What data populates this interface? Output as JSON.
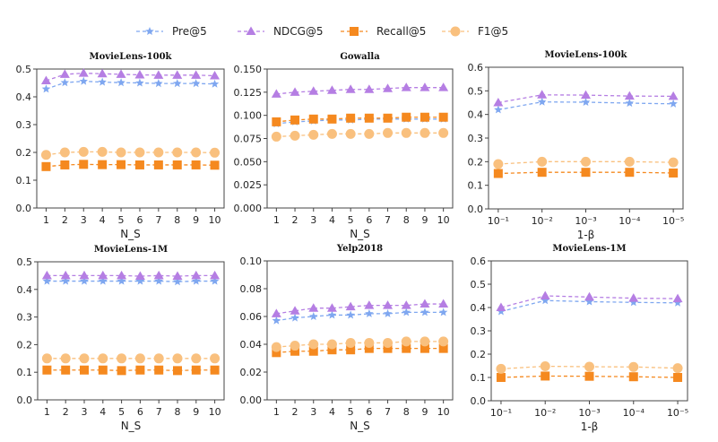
{
  "legend": {
    "placement": "top",
    "entries": [
      "Pre@5",
      "NDCG@5",
      "Recall@5",
      "F1@5"
    ]
  },
  "series_styles": [
    {
      "name": "Pre@5",
      "color": "#7fa7f0",
      "marker": "star"
    },
    {
      "name": "NDCG@5",
      "color": "#b57ee3",
      "marker": "triangle"
    },
    {
      "name": "Recall@5",
      "color": "#f5891f",
      "marker": "square"
    },
    {
      "name": "F1@5",
      "color": "#f9c07e",
      "marker": "circle"
    }
  ],
  "chart_data": [
    {
      "type": "line",
      "title": "MovieLens-100k",
      "xlabel": "N_S",
      "categories": [
        "1",
        "2",
        "3",
        "4",
        "5",
        "6",
        "7",
        "8",
        "9",
        "10"
      ],
      "ylim": [
        0,
        0.5
      ],
      "yticks": [
        "0.0",
        "0.1",
        "0.2",
        "0.3",
        "0.4",
        "0.5"
      ],
      "series": [
        {
          "name": "Pre@5",
          "values": [
            0.428,
            0.451,
            0.456,
            0.453,
            0.451,
            0.45,
            0.448,
            0.448,
            0.448,
            0.446
          ]
        },
        {
          "name": "NDCG@5",
          "values": [
            0.458,
            0.481,
            0.485,
            0.483,
            0.481,
            0.479,
            0.478,
            0.478,
            0.478,
            0.476
          ]
        },
        {
          "name": "Recall@5",
          "values": [
            0.149,
            0.155,
            0.157,
            0.156,
            0.156,
            0.155,
            0.155,
            0.155,
            0.155,
            0.154
          ]
        },
        {
          "name": "F1@5",
          "values": [
            0.191,
            0.2,
            0.202,
            0.202,
            0.2,
            0.2,
            0.2,
            0.2,
            0.2,
            0.199
          ]
        }
      ]
    },
    {
      "type": "line",
      "title": "Gowalla",
      "xlabel": "N_S",
      "categories": [
        "1",
        "2",
        "3",
        "4",
        "5",
        "6",
        "7",
        "8",
        "9",
        "10"
      ],
      "ylim": [
        0,
        0.15
      ],
      "yticks": [
        "0.000",
        "0.025",
        "0.050",
        "0.075",
        "0.100",
        "0.125",
        "0.150"
      ],
      "series": [
        {
          "name": "Pre@5",
          "values": [
            0.091,
            0.093,
            0.094,
            0.095,
            0.095,
            0.096,
            0.096,
            0.096,
            0.096,
            0.096
          ]
        },
        {
          "name": "NDCG@5",
          "values": [
            0.123,
            0.125,
            0.126,
            0.127,
            0.128,
            0.128,
            0.129,
            0.13,
            0.13,
            0.13
          ]
        },
        {
          "name": "Recall@5",
          "values": [
            0.093,
            0.095,
            0.096,
            0.096,
            0.097,
            0.097,
            0.097,
            0.098,
            0.098,
            0.098
          ]
        },
        {
          "name": "F1@5",
          "values": [
            0.077,
            0.078,
            0.079,
            0.08,
            0.08,
            0.08,
            0.081,
            0.081,
            0.081,
            0.081
          ]
        }
      ]
    },
    {
      "type": "line",
      "title": "MovieLens-100k",
      "xlabel": "1-β",
      "categories": [
        "10⁻¹",
        "10⁻²",
        "10⁻³",
        "10⁻⁴",
        "10⁻⁵"
      ],
      "ylim": [
        0,
        0.6
      ],
      "yticks": [
        "0.0",
        "0.1",
        "0.2",
        "0.3",
        "0.4",
        "0.5",
        "0.6"
      ],
      "series": [
        {
          "name": "Pre@5",
          "values": [
            0.42,
            0.453,
            0.452,
            0.448,
            0.445
          ]
        },
        {
          "name": "NDCG@5",
          "values": [
            0.45,
            0.483,
            0.482,
            0.478,
            0.477
          ]
        },
        {
          "name": "Recall@5",
          "values": [
            0.15,
            0.155,
            0.155,
            0.155,
            0.152
          ]
        },
        {
          "name": "F1@5",
          "values": [
            0.19,
            0.2,
            0.2,
            0.2,
            0.197
          ]
        }
      ]
    },
    {
      "type": "line",
      "title": "MovieLens-1M",
      "xlabel": "N_S",
      "categories": [
        "1",
        "2",
        "3",
        "4",
        "5",
        "6",
        "7",
        "8",
        "9",
        "10"
      ],
      "ylim": [
        0,
        0.5
      ],
      "yticks": [
        "0.0",
        "0.1",
        "0.2",
        "0.3",
        "0.4",
        "0.5"
      ],
      "series": [
        {
          "name": "Pre@5",
          "values": [
            0.43,
            0.43,
            0.43,
            0.43,
            0.43,
            0.43,
            0.43,
            0.428,
            0.43,
            0.43
          ]
        },
        {
          "name": "NDCG@5",
          "values": [
            0.45,
            0.45,
            0.45,
            0.45,
            0.45,
            0.448,
            0.45,
            0.448,
            0.45,
            0.45
          ]
        },
        {
          "name": "Recall@5",
          "values": [
            0.108,
            0.108,
            0.108,
            0.108,
            0.106,
            0.108,
            0.108,
            0.106,
            0.108,
            0.108
          ]
        },
        {
          "name": "F1@5",
          "values": [
            0.15,
            0.15,
            0.15,
            0.15,
            0.15,
            0.15,
            0.15,
            0.15,
            0.15,
            0.15
          ]
        }
      ]
    },
    {
      "type": "line",
      "title": "Yelp2018",
      "xlabel": "N_S",
      "categories": [
        "1",
        "2",
        "3",
        "4",
        "5",
        "6",
        "7",
        "8",
        "9",
        "10"
      ],
      "ylim": [
        0,
        0.1
      ],
      "yticks": [
        "0.00",
        "0.02",
        "0.04",
        "0.06",
        "0.08",
        "0.10"
      ],
      "series": [
        {
          "name": "Pre@5",
          "values": [
            0.057,
            0.059,
            0.06,
            0.061,
            0.061,
            0.062,
            0.062,
            0.063,
            0.063,
            0.063
          ]
        },
        {
          "name": "NDCG@5",
          "values": [
            0.062,
            0.064,
            0.066,
            0.066,
            0.067,
            0.068,
            0.068,
            0.068,
            0.069,
            0.069
          ]
        },
        {
          "name": "Recall@5",
          "values": [
            0.034,
            0.035,
            0.035,
            0.036,
            0.036,
            0.037,
            0.037,
            0.037,
            0.037,
            0.037
          ]
        },
        {
          "name": "F1@5",
          "values": [
            0.038,
            0.039,
            0.04,
            0.04,
            0.041,
            0.041,
            0.041,
            0.042,
            0.042,
            0.042
          ]
        }
      ]
    },
    {
      "type": "line",
      "title": "MovieLens-1M",
      "xlabel": "1-β",
      "categories": [
        "10⁻¹",
        "10⁻²",
        "10⁻³",
        "10⁻⁴",
        "10⁻⁵"
      ],
      "ylim": [
        0,
        0.6
      ],
      "yticks": [
        "0.0",
        "0.1",
        "0.2",
        "0.3",
        "0.4",
        "0.5",
        "0.6"
      ],
      "series": [
        {
          "name": "Pre@5",
          "values": [
            0.383,
            0.43,
            0.425,
            0.422,
            0.42
          ]
        },
        {
          "name": "NDCG@5",
          "values": [
            0.4,
            0.45,
            0.445,
            0.44,
            0.438
          ]
        },
        {
          "name": "Recall@5",
          "values": [
            0.1,
            0.106,
            0.105,
            0.103,
            0.1
          ]
        },
        {
          "name": "F1@5",
          "values": [
            0.137,
            0.148,
            0.146,
            0.145,
            0.14
          ]
        }
      ]
    }
  ]
}
